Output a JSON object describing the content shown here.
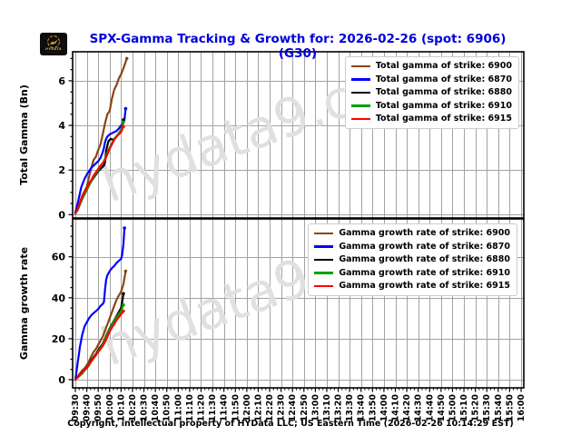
{
  "header": {
    "title": "SPX-Gamma Tracking & Growth for: 2026-02-26 (spot: 6906) (G30)",
    "title_color": "#0000DD",
    "logo_text": "HYDATA",
    "logo_dots": "......."
  },
  "watermark": {
    "text": "hydata9.com",
    "color": "#E0E0E0"
  },
  "footer": {
    "copyright": "Copyright, intellectual property of HYData LLC; US Eastern Time (2026-02-26 10:14:29 EST)"
  },
  "chart_data": [
    {
      "type": "line",
      "ylabel": "Total Gamma (Bn)",
      "ylim": [
        -0.15,
        7.3
      ],
      "yticks": [
        0,
        2,
        4,
        6
      ],
      "x_minutes_range": [
        0,
        390
      ],
      "grid": true,
      "legend_position": "upper right",
      "x_tick_labels": [
        "09:30",
        "09:40",
        "09:50",
        "10:00",
        "10:10",
        "10:20",
        "10:30",
        "10:40",
        "10:50",
        "11:00",
        "11:10",
        "11:20",
        "11:30",
        "11:40",
        "11:50",
        "12:00",
        "12:10",
        "12:20",
        "12:30",
        "12:40",
        "12:50",
        "13:00",
        "13:10",
        "13:20",
        "13:30",
        "13:40",
        "13:50",
        "14:00",
        "14:10",
        "14:20",
        "14:30",
        "14:40",
        "14:50",
        "15:00",
        "15:10",
        "15:20",
        "15:30",
        "15:40",
        "15:50",
        "16:00"
      ],
      "series": [
        {
          "label": "Total gamma of strike: 6900",
          "color": "#8B4513",
          "points": [
            [
              0,
              0.05
            ],
            [
              2,
              0.25
            ],
            [
              4,
              0.55
            ],
            [
              6,
              0.85
            ],
            [
              8,
              1.05
            ],
            [
              10,
              1.25
            ],
            [
              12,
              1.7
            ],
            [
              14,
              2.1
            ],
            [
              16,
              2.45
            ],
            [
              18,
              2.6
            ],
            [
              20,
              2.9
            ],
            [
              22,
              3.15
            ],
            [
              24,
              3.6
            ],
            [
              26,
              4.1
            ],
            [
              28,
              4.5
            ],
            [
              30,
              4.65
            ],
            [
              32,
              5.2
            ],
            [
              34,
              5.6
            ],
            [
              36,
              5.8
            ],
            [
              38,
              6.1
            ],
            [
              40,
              6.3
            ],
            [
              42,
              6.55
            ],
            [
              44,
              6.85
            ],
            [
              45,
              7.0
            ]
          ]
        },
        {
          "label": "Total gamma of strike: 6870",
          "color": "#0000FF",
          "points": [
            [
              0,
              0.1
            ],
            [
              2,
              0.5
            ],
            [
              4,
              0.95
            ],
            [
              5,
              1.2
            ],
            [
              6,
              1.35
            ],
            [
              8,
              1.6
            ],
            [
              10,
              1.8
            ],
            [
              12,
              1.95
            ],
            [
              14,
              2.1
            ],
            [
              16,
              2.2
            ],
            [
              18,
              2.3
            ],
            [
              20,
              2.4
            ],
            [
              22,
              2.55
            ],
            [
              24,
              2.8
            ],
            [
              25,
              3.0
            ],
            [
              26,
              3.25
            ],
            [
              27,
              3.4
            ],
            [
              28,
              3.5
            ],
            [
              30,
              3.6
            ],
            [
              32,
              3.65
            ],
            [
              34,
              3.7
            ],
            [
              36,
              3.75
            ],
            [
              38,
              3.85
            ],
            [
              40,
              4.0
            ],
            [
              42,
              4.1
            ],
            [
              43,
              4.25
            ],
            [
              44,
              4.75
            ]
          ]
        },
        {
          "label": "Total gamma of strike: 6880",
          "color": "#000000",
          "points": [
            [
              0,
              0.05
            ],
            [
              2,
              0.25
            ],
            [
              4,
              0.5
            ],
            [
              6,
              0.75
            ],
            [
              8,
              0.95
            ],
            [
              10,
              1.15
            ],
            [
              12,
              1.35
            ],
            [
              14,
              1.5
            ],
            [
              16,
              1.65
            ],
            [
              18,
              1.8
            ],
            [
              20,
              1.95
            ],
            [
              22,
              2.05
            ],
            [
              24,
              2.15
            ],
            [
              25,
              2.2
            ],
            [
              26,
              2.35
            ],
            [
              27,
              2.9
            ],
            [
              28,
              3.1
            ],
            [
              29,
              3.3
            ],
            [
              31,
              3.4
            ],
            [
              33,
              3.35
            ],
            [
              35,
              3.45
            ],
            [
              37,
              3.55
            ],
            [
              39,
              3.7
            ],
            [
              40,
              3.8
            ],
            [
              41,
              4.0
            ],
            [
              42,
              4.25
            ]
          ]
        },
        {
          "label": "Total gamma of strike: 6910",
          "color": "#00A000",
          "points": [
            [
              0,
              0.05
            ],
            [
              2,
              0.2
            ],
            [
              4,
              0.45
            ],
            [
              6,
              0.7
            ],
            [
              8,
              0.9
            ],
            [
              10,
              1.1
            ],
            [
              12,
              1.3
            ],
            [
              14,
              1.5
            ],
            [
              16,
              1.7
            ],
            [
              18,
              1.85
            ],
            [
              20,
              2.0
            ],
            [
              22,
              2.15
            ],
            [
              24,
              2.3
            ],
            [
              26,
              2.5
            ],
            [
              28,
              2.8
            ],
            [
              30,
              3.0
            ],
            [
              32,
              3.2
            ],
            [
              34,
              3.4
            ],
            [
              36,
              3.5
            ],
            [
              38,
              3.65
            ],
            [
              40,
              3.8
            ],
            [
              41,
              3.95
            ],
            [
              42,
              4.15
            ]
          ]
        },
        {
          "label": "Total gamma of strike: 6915",
          "color": "#FF0000",
          "points": [
            [
              0,
              0.05
            ],
            [
              2,
              0.25
            ],
            [
              4,
              0.5
            ],
            [
              6,
              0.8
            ],
            [
              8,
              1.0
            ],
            [
              10,
              1.2
            ],
            [
              12,
              1.4
            ],
            [
              14,
              1.55
            ],
            [
              16,
              1.75
            ],
            [
              18,
              1.9
            ],
            [
              20,
              2.05
            ],
            [
              22,
              2.2
            ],
            [
              24,
              2.3
            ],
            [
              26,
              2.45
            ],
            [
              28,
              2.7
            ],
            [
              30,
              2.95
            ],
            [
              32,
              3.15
            ],
            [
              34,
              3.35
            ],
            [
              36,
              3.5
            ],
            [
              38,
              3.6
            ],
            [
              40,
              3.7
            ],
            [
              42,
              3.95
            ]
          ]
        }
      ]
    },
    {
      "type": "line",
      "ylabel": "Gamma growth rate",
      "ylim": [
        -4,
        78.5
      ],
      "yticks": [
        0,
        20,
        40,
        60
      ],
      "x_minutes_range": [
        0,
        390
      ],
      "grid": true,
      "legend_position": "upper right",
      "x_tick_labels": [
        "09:30",
        "09:40",
        "09:50",
        "10:00",
        "10:10",
        "10:20",
        "10:30",
        "10:40",
        "10:50",
        "11:00",
        "11:10",
        "11:20",
        "11:30",
        "11:40",
        "11:50",
        "12:00",
        "12:10",
        "12:20",
        "12:30",
        "12:40",
        "12:50",
        "13:00",
        "13:10",
        "13:20",
        "13:30",
        "13:40",
        "13:50",
        "14:00",
        "14:10",
        "14:20",
        "14:30",
        "14:40",
        "14:50",
        "15:00",
        "15:10",
        "15:20",
        "15:30",
        "15:40",
        "15:50",
        "16:00"
      ],
      "series": [
        {
          "label": "Gamma growth rate of strike: 6900",
          "color": "#8B4513",
          "points": [
            [
              0,
              0
            ],
            [
              2,
              1.5
            ],
            [
              4,
              3
            ],
            [
              6,
              4.5
            ],
            [
              8,
              5.5
            ],
            [
              10,
              7
            ],
            [
              12,
              9
            ],
            [
              14,
              11.5
            ],
            [
              16,
              13.5
            ],
            [
              18,
              15
            ],
            [
              20,
              17
            ],
            [
              22,
              19
            ],
            [
              24,
              21
            ],
            [
              26,
              24
            ],
            [
              28,
              27
            ],
            [
              30,
              30
            ],
            [
              32,
              33
            ],
            [
              34,
              36
            ],
            [
              36,
              39
            ],
            [
              38,
              41
            ],
            [
              40,
              43
            ],
            [
              42,
              46.5
            ],
            [
              44,
              53
            ]
          ]
        },
        {
          "label": "Gamma growth rate of strike: 6870",
          "color": "#0000FF",
          "points": [
            [
              0,
              0
            ],
            [
              1,
              4
            ],
            [
              2,
              8
            ],
            [
              3,
              12
            ],
            [
              4,
              16
            ],
            [
              5,
              19
            ],
            [
              6,
              22
            ],
            [
              8,
              26
            ],
            [
              10,
              28
            ],
            [
              12,
              30
            ],
            [
              14,
              31.5
            ],
            [
              16,
              32.5
            ],
            [
              18,
              33.5
            ],
            [
              20,
              34.5
            ],
            [
              22,
              36
            ],
            [
              24,
              37
            ],
            [
              25,
              38
            ],
            [
              26,
              44
            ],
            [
              27,
              49
            ],
            [
              28,
              51
            ],
            [
              30,
              53
            ],
            [
              32,
              54.5
            ],
            [
              34,
              55.5
            ],
            [
              36,
              57
            ],
            [
              38,
              58
            ],
            [
              40,
              59
            ],
            [
              41,
              61
            ],
            [
              42,
              66
            ],
            [
              43,
              74
            ]
          ]
        },
        {
          "label": "Gamma growth rate of strike: 6880",
          "color": "#000000",
          "points": [
            [
              0,
              0
            ],
            [
              2,
              1
            ],
            [
              4,
              2.5
            ],
            [
              6,
              3.5
            ],
            [
              8,
              5
            ],
            [
              10,
              6
            ],
            [
              12,
              7.5
            ],
            [
              14,
              9.5
            ],
            [
              16,
              11
            ],
            [
              18,
              12.5
            ],
            [
              20,
              14.5
            ],
            [
              22,
              16
            ],
            [
              24,
              17.5
            ],
            [
              26,
              20
            ],
            [
              28,
              22.5
            ],
            [
              30,
              25
            ],
            [
              32,
              27
            ],
            [
              34,
              29
            ],
            [
              36,
              31
            ],
            [
              38,
              33
            ],
            [
              40,
              35
            ],
            [
              41,
              38
            ],
            [
              42,
              42
            ]
          ]
        },
        {
          "label": "Gamma growth rate of strike: 6910",
          "color": "#00A000",
          "points": [
            [
              0,
              0
            ],
            [
              2,
              1
            ],
            [
              4,
              2
            ],
            [
              6,
              3
            ],
            [
              8,
              4.5
            ],
            [
              10,
              5.5
            ],
            [
              12,
              7
            ],
            [
              14,
              9
            ],
            [
              16,
              10.5
            ],
            [
              18,
              12
            ],
            [
              20,
              14
            ],
            [
              22,
              15.5
            ],
            [
              24,
              17
            ],
            [
              26,
              19.5
            ],
            [
              28,
              22
            ],
            [
              30,
              24.5
            ],
            [
              32,
              26.5
            ],
            [
              34,
              28.5
            ],
            [
              36,
              30.5
            ],
            [
              38,
              32
            ],
            [
              40,
              33.5
            ],
            [
              41,
              35
            ],
            [
              42,
              36.5
            ]
          ]
        },
        {
          "label": "Gamma growth rate of strike: 6915",
          "color": "#FF0000",
          "points": [
            [
              0,
              0
            ],
            [
              2,
              1
            ],
            [
              4,
              2.5
            ],
            [
              6,
              3.5
            ],
            [
              8,
              5
            ],
            [
              10,
              6
            ],
            [
              12,
              7.5
            ],
            [
              14,
              9
            ],
            [
              16,
              10.5
            ],
            [
              18,
              12
            ],
            [
              20,
              13.5
            ],
            [
              22,
              15
            ],
            [
              24,
              16.5
            ],
            [
              26,
              18.5
            ],
            [
              28,
              21
            ],
            [
              30,
              23.5
            ],
            [
              32,
              25.5
            ],
            [
              34,
              27
            ],
            [
              36,
              29
            ],
            [
              38,
              30.5
            ],
            [
              40,
              32
            ],
            [
              41,
              32.5
            ],
            [
              42,
              33.5
            ]
          ]
        }
      ]
    }
  ],
  "style": {
    "gridline_color": "#A3A3A3",
    "spine_color": "#000000"
  }
}
